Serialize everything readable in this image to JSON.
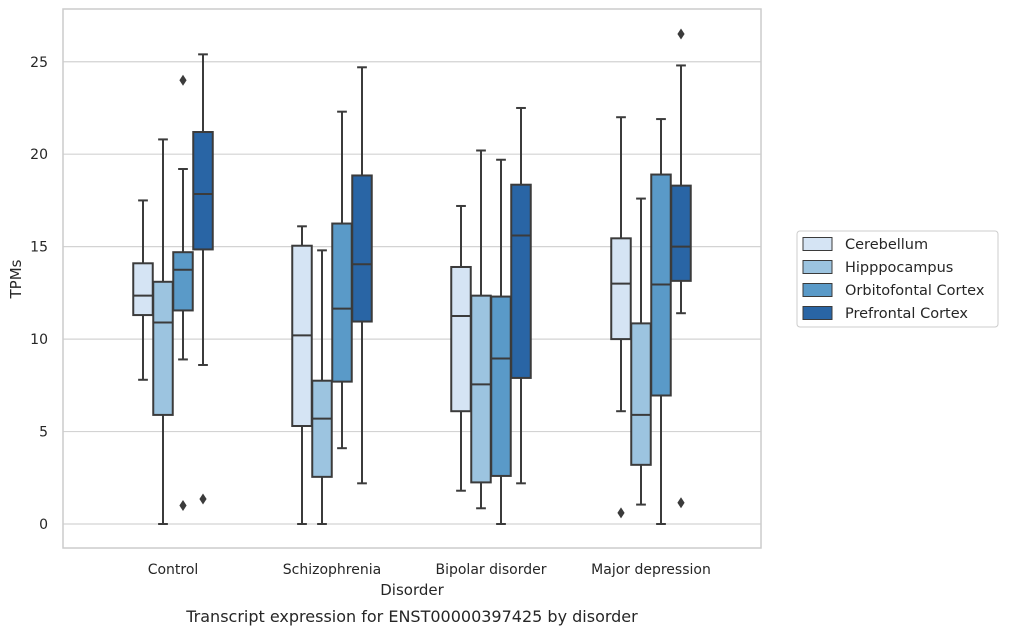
{
  "chart_data": {
    "type": "box",
    "caption": "Transcript expression for ENST00000397425 by disorder",
    "xlabel": "Disorder",
    "ylabel": "TPMs",
    "ylim": [
      -1.2,
      28
    ],
    "yticks": [
      0,
      5,
      10,
      15,
      20,
      25
    ],
    "grid": "horizontal",
    "legend_position": "right",
    "categories": [
      "Control",
      "Schizophrenia",
      "Bipolar disorder",
      "Major depression"
    ],
    "series": [
      {
        "name": "Cerebellum",
        "color": "#d5e4f4",
        "boxes": [
          {
            "whisker_low": 7.8,
            "q1": 11.3,
            "median": 12.35,
            "q3": 14.1,
            "whisker_high": 17.5,
            "outliers": []
          },
          {
            "whisker_low": 0.0,
            "q1": 5.3,
            "median": 10.2,
            "q3": 15.05,
            "whisker_high": 16.1,
            "outliers": []
          },
          {
            "whisker_low": 1.8,
            "q1": 6.1,
            "median": 11.25,
            "q3": 13.9,
            "whisker_high": 17.2,
            "outliers": []
          },
          {
            "whisker_low": 6.1,
            "q1": 10.0,
            "median": 13.0,
            "q3": 15.45,
            "whisker_high": 22.0,
            "outliers": [
              0.6
            ]
          }
        ]
      },
      {
        "name": "Hipppocampus",
        "color": "#9cc4e0",
        "boxes": [
          {
            "whisker_low": 0.0,
            "q1": 5.9,
            "median": 10.9,
            "q3": 13.1,
            "whisker_high": 20.8,
            "outliers": []
          },
          {
            "whisker_low": 0.0,
            "q1": 2.55,
            "median": 5.7,
            "q3": 7.75,
            "whisker_high": 14.8,
            "outliers": []
          },
          {
            "whisker_low": 0.85,
            "q1": 2.25,
            "median": 7.55,
            "q3": 12.35,
            "whisker_high": 20.2,
            "outliers": []
          },
          {
            "whisker_low": 1.05,
            "q1": 3.2,
            "median": 5.9,
            "q3": 10.85,
            "whisker_high": 17.6,
            "outliers": []
          }
        ]
      },
      {
        "name": "Orbitofontal Cortex",
        "color": "#5a9ac8",
        "boxes": [
          {
            "whisker_low": 8.9,
            "q1": 11.55,
            "median": 13.75,
            "q3": 14.7,
            "whisker_high": 19.2,
            "outliers": [
              24.0,
              1.0
            ]
          },
          {
            "whisker_low": 4.1,
            "q1": 7.7,
            "median": 11.65,
            "q3": 16.25,
            "whisker_high": 22.3,
            "outliers": []
          },
          {
            "whisker_low": 0.0,
            "q1": 2.6,
            "median": 8.95,
            "q3": 12.3,
            "whisker_high": 19.7,
            "outliers": []
          },
          {
            "whisker_low": 0.0,
            "q1": 6.95,
            "median": 12.95,
            "q3": 18.9,
            "whisker_high": 21.9,
            "outliers": []
          }
        ]
      },
      {
        "name": "Prefrontal Cortex",
        "color": "#2965a5",
        "boxes": [
          {
            "whisker_low": 8.6,
            "q1": 14.85,
            "median": 17.85,
            "q3": 21.2,
            "whisker_high": 25.4,
            "outliers": [
              1.35
            ]
          },
          {
            "whisker_low": 2.2,
            "q1": 10.95,
            "median": 14.05,
            "q3": 18.85,
            "whisker_high": 24.7,
            "outliers": []
          },
          {
            "whisker_low": 2.2,
            "q1": 7.9,
            "median": 15.6,
            "q3": 18.35,
            "whisker_high": 22.5,
            "outliers": []
          },
          {
            "whisker_low": 11.4,
            "q1": 13.15,
            "median": 15.0,
            "q3": 18.3,
            "whisker_high": 24.8,
            "outliers": [
              1.15,
              26.5
            ]
          }
        ]
      }
    ]
  }
}
